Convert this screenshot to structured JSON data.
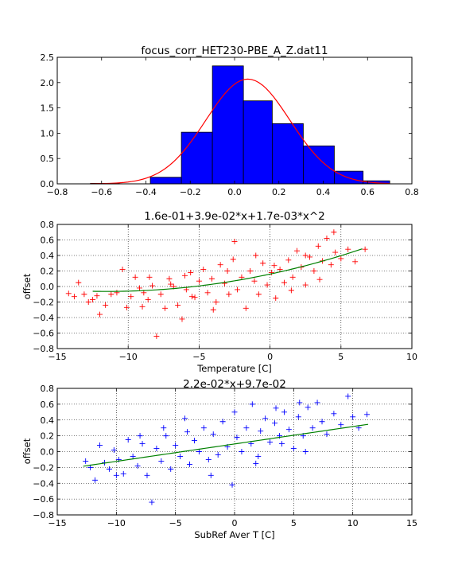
{
  "chart_data": [
    {
      "type": "bar",
      "title": "focus_corr_HET230-PBE_A_Z.dat11",
      "xlabel": "",
      "ylabel": "",
      "xlim": [
        -0.8,
        0.8
      ],
      "ylim": [
        0,
        2.5
      ],
      "xticks": [
        "−0.8",
        "−0.6",
        "−0.4",
        "−0.2",
        "0.0",
        "0.2",
        "0.4",
        "0.6",
        "0.8"
      ],
      "yticks": [
        "0.0",
        "0.5",
        "1.0",
        "1.5",
        "2.0",
        "2.5"
      ],
      "bins": [
        {
          "x0": -0.65,
          "x1": -0.52,
          "value": 0.01
        },
        {
          "x0": -0.52,
          "x1": -0.38,
          "value": 0.0
        },
        {
          "x0": -0.38,
          "x1": -0.24,
          "value": 0.13
        },
        {
          "x0": -0.24,
          "x1": -0.1,
          "value": 1.02
        },
        {
          "x0": -0.1,
          "x1": 0.04,
          "value": 2.33
        },
        {
          "x0": 0.04,
          "x1": 0.17,
          "value": 1.64
        },
        {
          "x0": 0.17,
          "x1": 0.31,
          "value": 1.19
        },
        {
          "x0": 0.31,
          "x1": 0.45,
          "value": 0.75
        },
        {
          "x0": 0.45,
          "x1": 0.58,
          "value": 0.25
        },
        {
          "x0": 0.58,
          "x1": 0.7,
          "value": 0.06
        }
      ],
      "bar_color": "#0000ff",
      "fit_curve": {
        "type": "gaussian",
        "mean": 0.06,
        "sigma": 0.19,
        "peak": 2.07,
        "x_range": [
          -0.65,
          0.7
        ],
        "color": "#ff0000"
      },
      "grid": false
    },
    {
      "type": "scatter",
      "title": "1.6e-01+3.9e-02*x+1.7e-03*x^2",
      "xlabel": "Temperature [C]",
      "ylabel": "offset",
      "xlim": [
        -15,
        10
      ],
      "ylim": [
        -0.8,
        0.8
      ],
      "xticks": [
        "−15",
        "−10",
        "−5",
        "0",
        "5",
        "10"
      ],
      "yticks": [
        "−0.8",
        "−0.6",
        "−0.4",
        "−0.2",
        "0.0",
        "0.2",
        "0.4",
        "0.6",
        "0.8"
      ],
      "marker": "+",
      "marker_color": "#ff0000",
      "points": [
        [
          -14.2,
          -0.09
        ],
        [
          -13.8,
          -0.13
        ],
        [
          -13.5,
          0.05
        ],
        [
          -13.1,
          -0.1
        ],
        [
          -12.8,
          -0.2
        ],
        [
          -12.5,
          -0.17
        ],
        [
          -12.2,
          -0.12
        ],
        [
          -12.0,
          -0.36
        ],
        [
          -11.6,
          -0.24
        ],
        [
          -11.2,
          -0.1
        ],
        [
          -10.8,
          -0.08
        ],
        [
          -10.4,
          0.22
        ],
        [
          -10.1,
          -0.27
        ],
        [
          -9.8,
          -0.13
        ],
        [
          -9.5,
          0.12
        ],
        [
          -9.2,
          -0.02
        ],
        [
          -8.9,
          -0.08
        ],
        [
          -8.6,
          -0.17
        ],
        [
          -8.3,
          0.01
        ],
        [
          -8.0,
          -0.64
        ],
        [
          -7.7,
          -0.1
        ],
        [
          -7.4,
          -0.28
        ],
        [
          -7.1,
          0.1
        ],
        [
          -6.8,
          0.0
        ],
        [
          -6.5,
          -0.24
        ],
        [
          -6.2,
          -0.42
        ],
        [
          -5.9,
          -0.04
        ],
        [
          -5.6,
          0.18
        ],
        [
          -5.3,
          -0.14
        ],
        [
          -5.0,
          0.07
        ],
        [
          -4.7,
          0.22
        ],
        [
          -4.4,
          -0.08
        ],
        [
          -4.1,
          0.1
        ],
        [
          -3.8,
          -0.2
        ],
        [
          -3.5,
          0.28
        ],
        [
          -3.2,
          0.04
        ],
        [
          -2.9,
          -0.1
        ],
        [
          -2.6,
          0.35
        ],
        [
          -2.3,
          -0.04
        ],
        [
          -2.0,
          0.12
        ],
        [
          -1.7,
          -0.28
        ],
        [
          -1.4,
          0.2
        ],
        [
          -1.1,
          0.07
        ],
        [
          -0.8,
          -0.1
        ],
        [
          -0.5,
          0.3
        ],
        [
          -0.2,
          0.02
        ],
        [
          0.1,
          0.18
        ],
        [
          0.4,
          -0.15
        ],
        [
          0.7,
          0.22
        ],
        [
          1.0,
          0.05
        ],
        [
          1.3,
          0.34
        ],
        [
          1.6,
          0.12
        ],
        [
          1.9,
          0.46
        ],
        [
          2.2,
          0.25
        ],
        [
          2.5,
          0.02
        ],
        [
          2.8,
          0.38
        ],
        [
          3.1,
          0.2
        ],
        [
          3.4,
          0.52
        ],
        [
          3.7,
          0.33
        ],
        [
          4.0,
          0.62
        ],
        [
          4.3,
          0.28
        ],
        [
          4.6,
          0.44
        ],
        [
          5.0,
          0.36
        ],
        [
          5.5,
          0.48
        ],
        [
          6.0,
          0.32
        ],
        [
          6.7,
          0.48
        ],
        [
          -9.0,
          -0.26
        ],
        [
          -7.0,
          0.03
        ],
        [
          -4.0,
          -0.3
        ],
        [
          -3.0,
          0.2
        ],
        [
          -2.5,
          0.58
        ],
        [
          -1.0,
          0.4
        ],
        [
          0.3,
          0.27
        ],
        [
          1.5,
          -0.05
        ],
        [
          2.5,
          0.4
        ],
        [
          3.5,
          0.09
        ],
        [
          4.5,
          0.7
        ],
        [
          -6.0,
          0.14
        ],
        [
          -5.5,
          -0.13
        ],
        [
          -8.5,
          0.12
        ]
      ],
      "fit_curve": {
        "type": "polynomial",
        "coeffs": [
          0.16,
          0.039,
          0.0017
        ],
        "x_range": [
          -12.5,
          6.5
        ],
        "color": "#008000"
      },
      "grid": true
    },
    {
      "type": "scatter",
      "title": "2.2e-02*x+9.7e-02",
      "xlabel": "SubRef Aver T [C]",
      "ylabel": "offset",
      "xlim": [
        -15,
        15
      ],
      "ylim": [
        -0.8,
        0.8
      ],
      "xticks": [
        "−15",
        "−10",
        "−5",
        "0",
        "5",
        "10",
        "15"
      ],
      "yticks": [
        "−0.8",
        "−0.6",
        "−0.4",
        "−0.2",
        "0.0",
        "0.2",
        "0.4",
        "0.6",
        "0.8"
      ],
      "marker": "+",
      "marker_color": "#0000ff",
      "points": [
        [
          -12.6,
          -0.12
        ],
        [
          -12.2,
          -0.2
        ],
        [
          -11.8,
          -0.36
        ],
        [
          -11.4,
          0.08
        ],
        [
          -11.0,
          -0.14
        ],
        [
          -10.6,
          -0.22
        ],
        [
          -10.2,
          0.02
        ],
        [
          -9.8,
          -0.1
        ],
        [
          -9.4,
          -0.28
        ],
        [
          -9.0,
          0.15
        ],
        [
          -8.6,
          -0.06
        ],
        [
          -8.2,
          -0.18
        ],
        [
          -7.8,
          0.1
        ],
        [
          -7.4,
          -0.3
        ],
        [
          -7.0,
          -0.64
        ],
        [
          -6.6,
          0.04
        ],
        [
          -6.2,
          -0.12
        ],
        [
          -5.8,
          0.2
        ],
        [
          -5.4,
          -0.22
        ],
        [
          -5.0,
          0.08
        ],
        [
          -4.6,
          -0.06
        ],
        [
          -4.2,
          0.42
        ],
        [
          -3.8,
          -0.16
        ],
        [
          -3.4,
          0.14
        ],
        [
          -3.0,
          0.0
        ],
        [
          -2.6,
          0.3
        ],
        [
          -2.2,
          -0.1
        ],
        [
          -1.8,
          0.22
        ],
        [
          -1.4,
          -0.04
        ],
        [
          -1.0,
          0.38
        ],
        [
          -0.6,
          0.06
        ],
        [
          -0.2,
          -0.42
        ],
        [
          0.2,
          0.18
        ],
        [
          0.6,
          0.0
        ],
        [
          1.0,
          0.3
        ],
        [
          1.4,
          0.1
        ],
        [
          1.8,
          -0.15
        ],
        [
          2.2,
          0.26
        ],
        [
          2.6,
          0.42
        ],
        [
          3.0,
          0.12
        ],
        [
          3.4,
          0.36
        ],
        [
          3.8,
          0.2
        ],
        [
          4.2,
          0.5
        ],
        [
          4.6,
          0.28
        ],
        [
          5.0,
          0.04
        ],
        [
          5.4,
          0.44
        ],
        [
          5.8,
          0.2
        ],
        [
          6.2,
          0.56
        ],
        [
          6.6,
          0.3
        ],
        [
          7.0,
          0.62
        ],
        [
          7.4,
          0.38
        ],
        [
          7.8,
          0.22
        ],
        [
          8.4,
          0.48
        ],
        [
          9.0,
          0.34
        ],
        [
          9.6,
          0.7
        ],
        [
          10.0,
          0.44
        ],
        [
          10.5,
          0.3
        ],
        [
          11.2,
          0.47
        ],
        [
          -4.0,
          0.25
        ],
        [
          -2.0,
          -0.3
        ],
        [
          0.0,
          0.5
        ],
        [
          2.0,
          -0.06
        ],
        [
          4.0,
          0.1
        ],
        [
          6.0,
          0.0
        ],
        [
          -6.0,
          0.3
        ],
        [
          -8.0,
          0.2
        ],
        [
          -10.0,
          -0.3
        ],
        [
          1.5,
          0.6
        ],
        [
          3.5,
          0.55
        ],
        [
          5.5,
          0.62
        ]
      ],
      "fit_curve": {
        "type": "linear",
        "slope": 0.022,
        "intercept": 0.097,
        "x_range": [
          -12.8,
          11.3
        ],
        "color": "#008000"
      },
      "grid": true
    }
  ]
}
